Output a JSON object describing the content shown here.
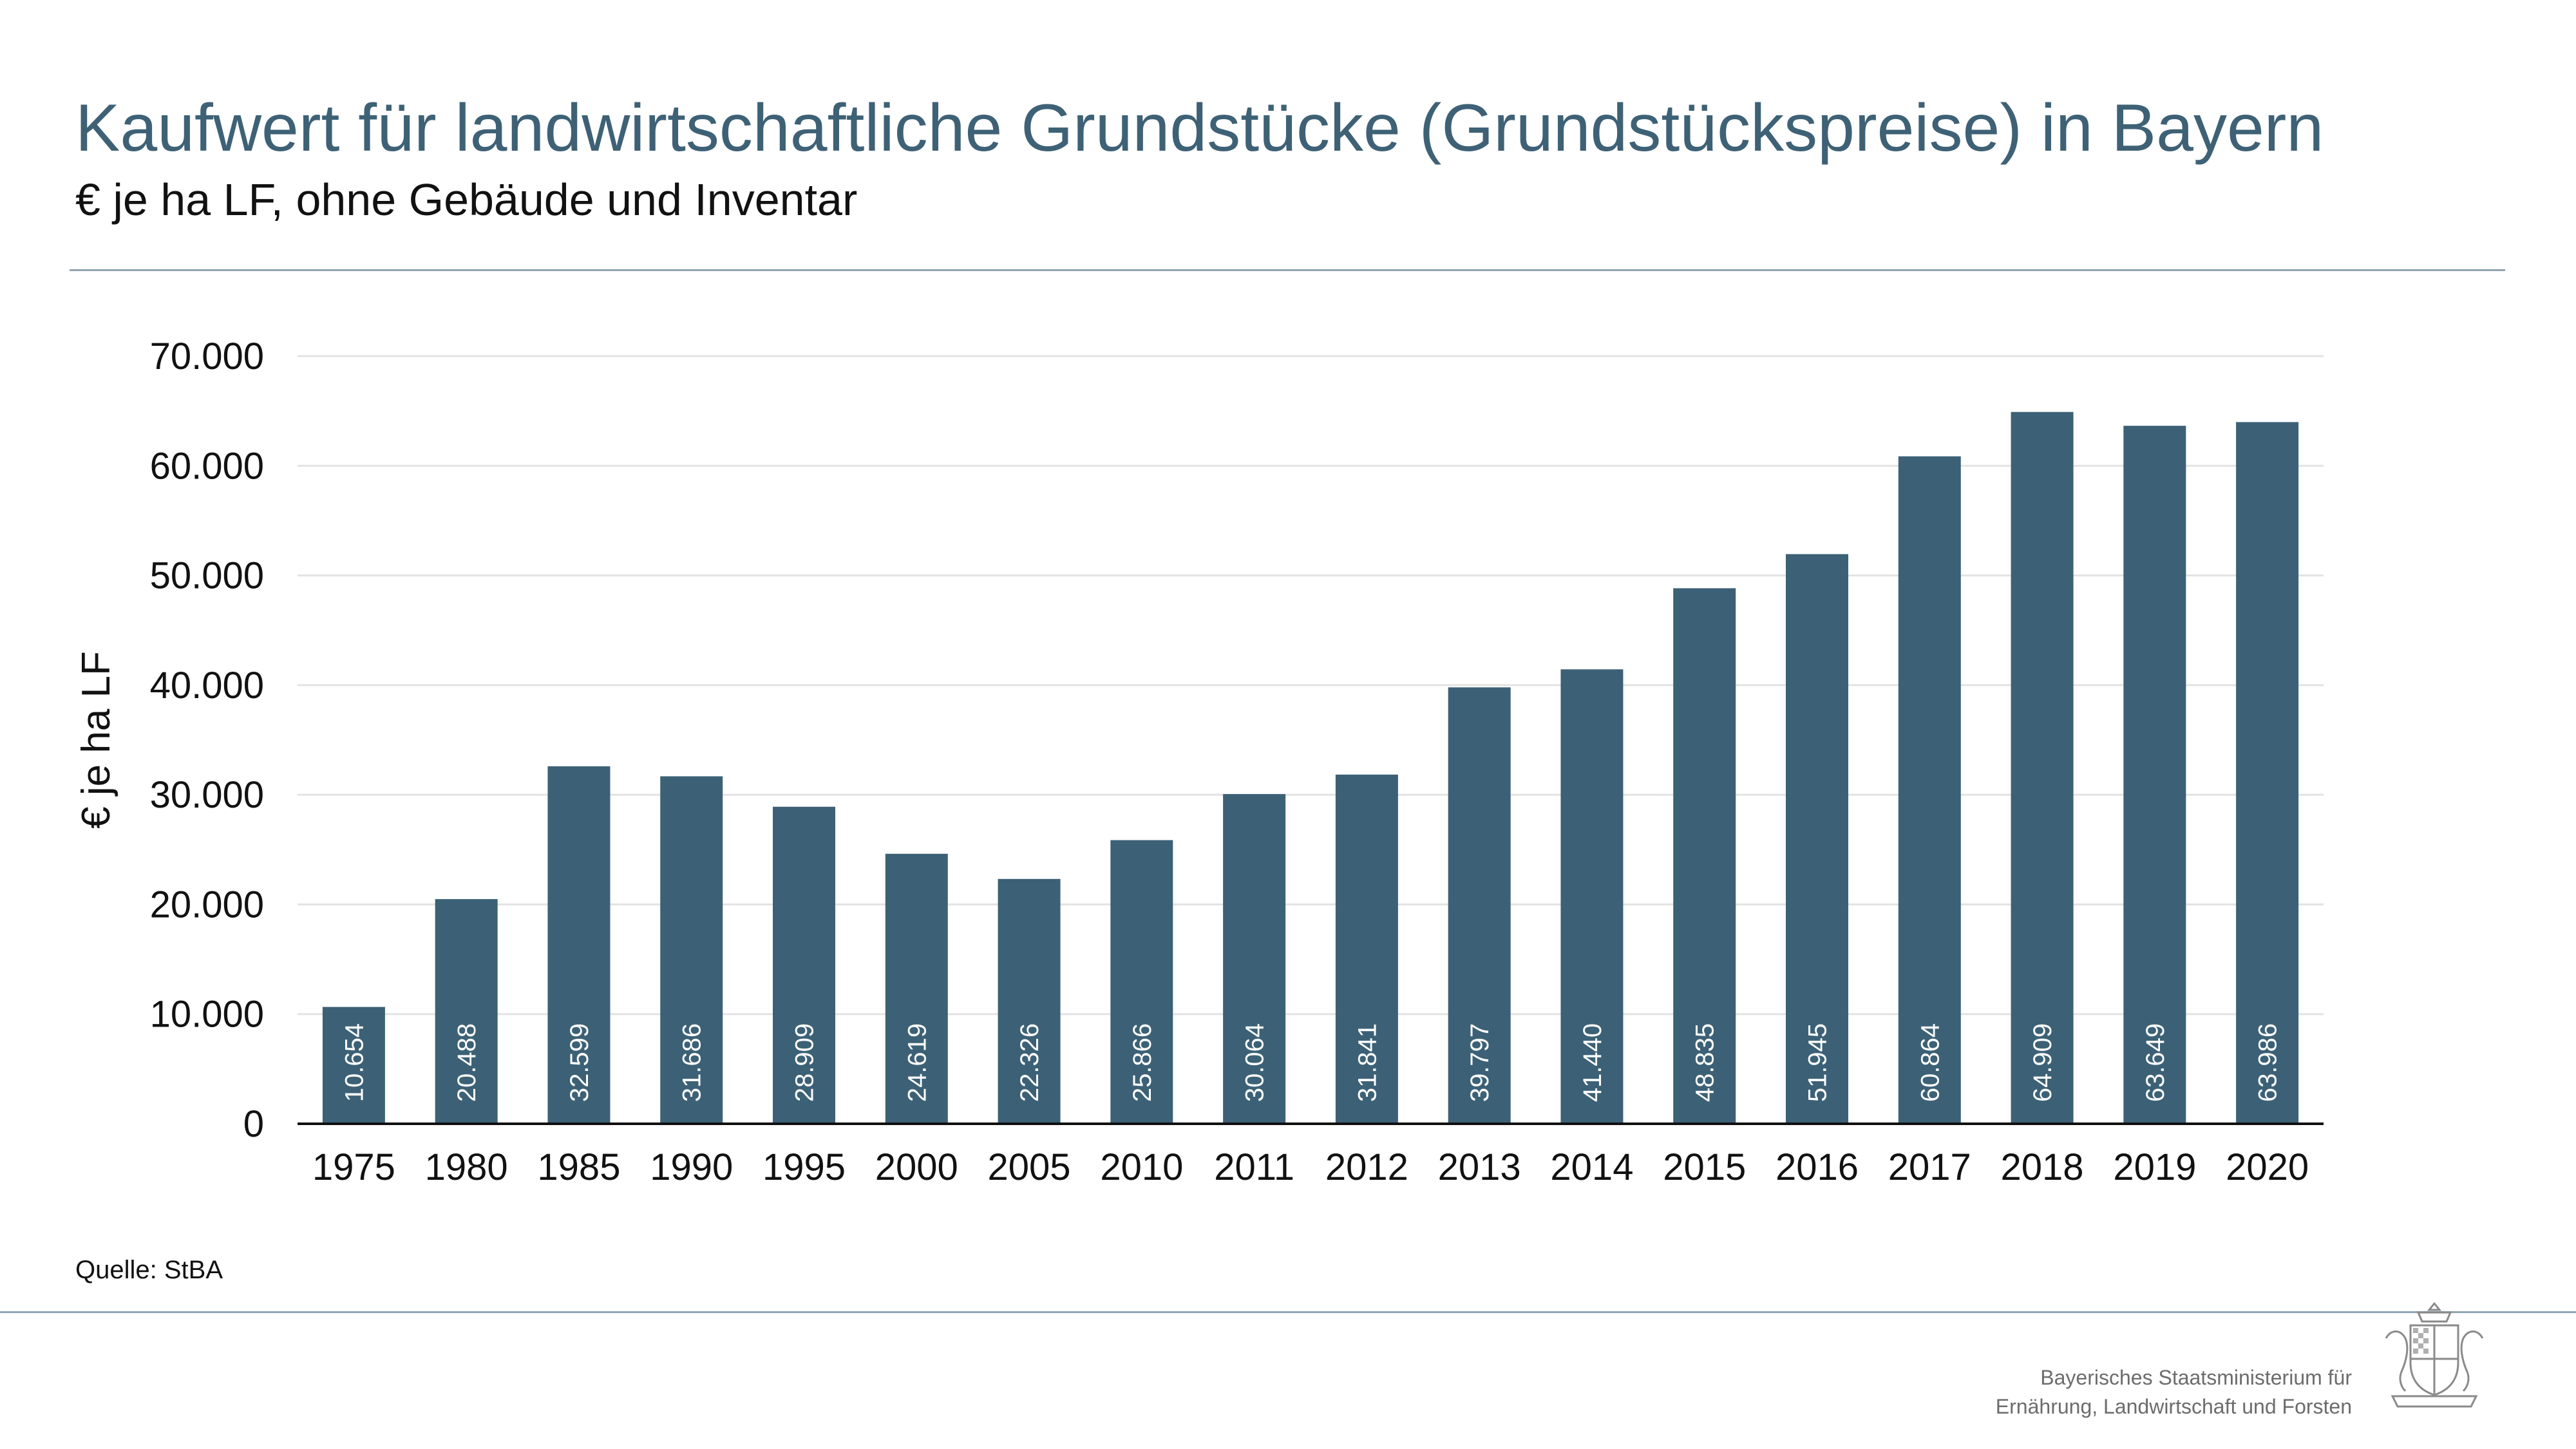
{
  "header": {
    "title": "Kaufwert für landwirtschaftliche Grundstücke (Grundstückspreise) in Bayern",
    "subtitle": "€ je ha LF, ohne Gebäude und Inventar"
  },
  "footer": {
    "source": "Quelle: StBA",
    "ministry_line1": "Bayerisches Staatsministerium für",
    "ministry_line2": "Ernährung, Landwirtschaft und Forsten",
    "crest_icon": "bavarian-coat-of-arms-icon"
  },
  "colors": {
    "title": "#3e6176",
    "bar": "#3c6176",
    "rule": "#8fa5b2"
  },
  "chart_data": {
    "type": "bar",
    "title": "",
    "xlabel": "",
    "ylabel": "€ je ha LF",
    "ylim": [
      0,
      70000
    ],
    "yticks": [
      0,
      10000,
      20000,
      30000,
      40000,
      50000,
      60000,
      70000
    ],
    "ytick_labels": [
      "0",
      "10.000",
      "20.000",
      "30.000",
      "40.000",
      "50.000",
      "60.000",
      "70.000"
    ],
    "grid": true,
    "categories": [
      "1975",
      "1980",
      "1985",
      "1990",
      "1995",
      "2000",
      "2005",
      "2010",
      "2011",
      "2012",
      "2013",
      "2014",
      "2015",
      "2016",
      "2017",
      "2018",
      "2019",
      "2020"
    ],
    "values": [
      10654,
      20488,
      32599,
      31686,
      28909,
      24619,
      22326,
      25866,
      30064,
      31841,
      39797,
      41440,
      48835,
      51945,
      60864,
      64909,
      63649,
      63986
    ],
    "value_labels": [
      "10.654",
      "20.488",
      "32.599",
      "31.686",
      "28.909",
      "24.619",
      "22.326",
      "25.866",
      "30.064",
      "31.841",
      "39.797",
      "41.440",
      "48.835",
      "51.945",
      "60.864",
      "64.909",
      "63.649",
      "63.986"
    ]
  }
}
